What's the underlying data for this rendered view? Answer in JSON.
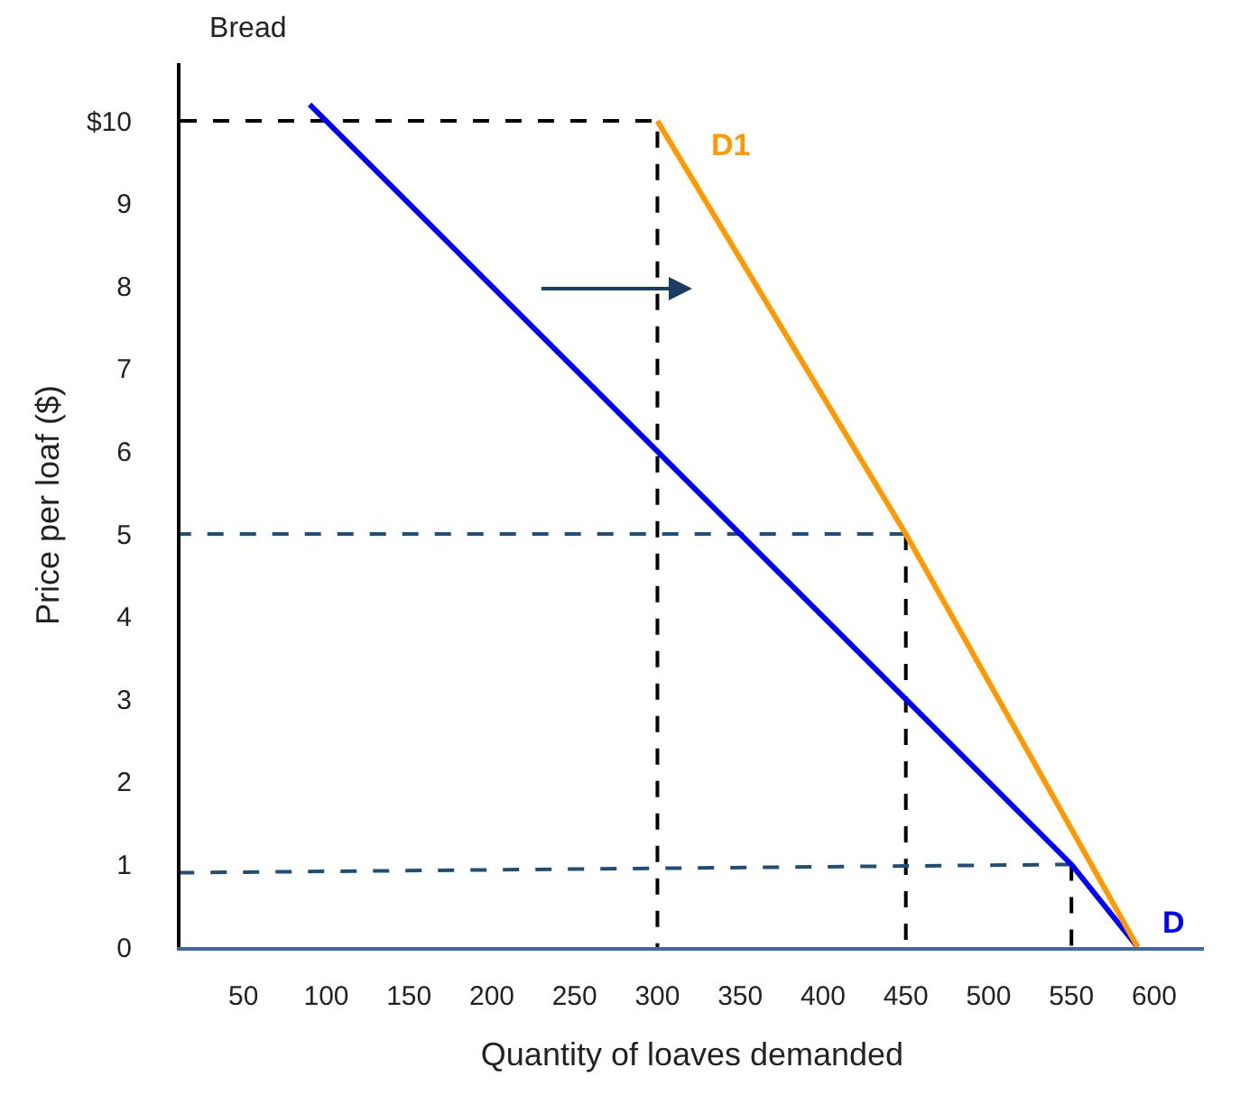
{
  "chart_data": {
    "type": "line",
    "title": "Bread",
    "xlabel": "Quantity of loaves demanded",
    "ylabel": "Price per loaf ($)",
    "xlim": [
      12,
      630
    ],
    "xticks": [
      50,
      100,
      150,
      200,
      250,
      300,
      350,
      400,
      450,
      500,
      550,
      600
    ],
    "ylim": [
      0,
      10.7
    ],
    "yticks": [
      0,
      1,
      2,
      3,
      4,
      5,
      6,
      7,
      8,
      9,
      {
        "value": 10,
        "label": "$10"
      }
    ],
    "grid": false,
    "legend": false,
    "marker": "none",
    "series": [
      {
        "line_style": "dashed",
        "color": "#000000",
        "x": [
          12,
          300,
          300
        ],
        "values": [
          10,
          10,
          0
        ]
      },
      {
        "line_style": "dashed",
        "color": "#1f4e79",
        "x": [
          450,
          12
        ],
        "values": [
          5,
          5
        ]
      },
      {
        "line_style": "dashed",
        "color": "#000000",
        "x": [
          450,
          450
        ],
        "values": [
          5,
          0
        ]
      },
      {
        "line_style": "dashed",
        "color": "#1f4e79",
        "x": [
          550,
          12
        ],
        "values": [
          1,
          0.9
        ]
      },
      {
        "line_style": "dashed",
        "color": "#000000",
        "x": [
          550,
          550
        ],
        "values": [
          1,
          0
        ]
      },
      {
        "line_style": "solid",
        "name": "D",
        "color": "#0000ff",
        "x": [
          90,
          300,
          450,
          550,
          590
        ],
        "values": [
          10.2,
          6,
          3,
          1,
          0
        ]
      },
      {
        "line_style": "solid",
        "name": "D1",
        "color": "#ff9900",
        "x": [
          300,
          450,
          590
        ],
        "values": [
          10,
          5,
          0
        ]
      }
    ]
  }
}
